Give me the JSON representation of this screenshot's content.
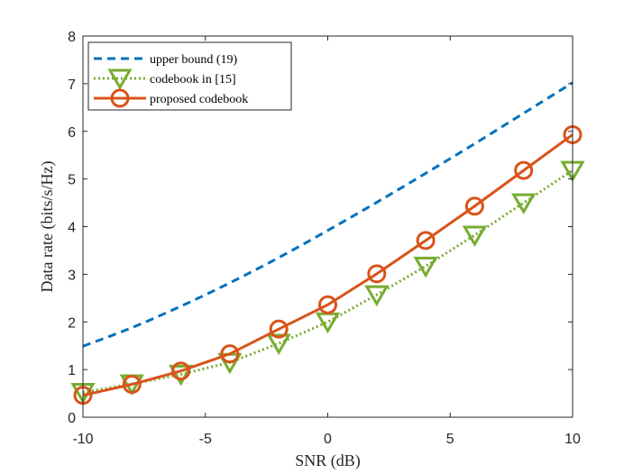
{
  "chart_data": {
    "type": "line",
    "title": "",
    "xlabel": "SNR (dB)",
    "ylabel": "Data rate (bits/s/Hz)",
    "xlim": [
      -10,
      10
    ],
    "ylim": [
      0,
      8
    ],
    "xticks": [
      -10,
      -5,
      0,
      5,
      10
    ],
    "xtick_labels": [
      "-10",
      "-5",
      "0",
      "5",
      "10"
    ],
    "yticks": [
      0,
      1,
      2,
      3,
      4,
      5,
      6,
      7,
      8
    ],
    "ytick_labels": [
      "0",
      "1",
      "2",
      "3",
      "4",
      "5",
      "6",
      "7",
      "8"
    ],
    "grid": false,
    "legend_position": "top-left",
    "series": [
      {
        "name": "upper bound (19)",
        "style": "dashed",
        "marker": "none",
        "color": "#0072BD",
        "x": [
          -10,
          -8,
          -6,
          -4,
          -2,
          0,
          2,
          4,
          6,
          8,
          10
        ],
        "values": [
          1.49,
          1.88,
          2.33,
          2.82,
          3.35,
          3.92,
          4.51,
          5.12,
          5.74,
          6.38,
          7.02
        ]
      },
      {
        "name": "codebook in [15]",
        "style": "dotted",
        "marker": "triangle-down",
        "color": "#77AC30",
        "x": [
          -10,
          -8,
          -6,
          -4,
          -2,
          0,
          2,
          4,
          6,
          8,
          10
        ],
        "values": [
          0.52,
          0.7,
          0.9,
          1.15,
          1.55,
          2.0,
          2.57,
          3.17,
          3.82,
          4.5,
          5.18
        ]
      },
      {
        "name": "proposed codebook",
        "style": "solid",
        "marker": "circle",
        "color": "#D95319",
        "x": [
          -10,
          -8,
          -6,
          -4,
          -2,
          0,
          2,
          4,
          6,
          8,
          10
        ],
        "values": [
          0.46,
          0.69,
          0.97,
          1.33,
          1.85,
          2.36,
          3.01,
          3.71,
          4.43,
          5.18,
          5.93
        ]
      }
    ]
  }
}
